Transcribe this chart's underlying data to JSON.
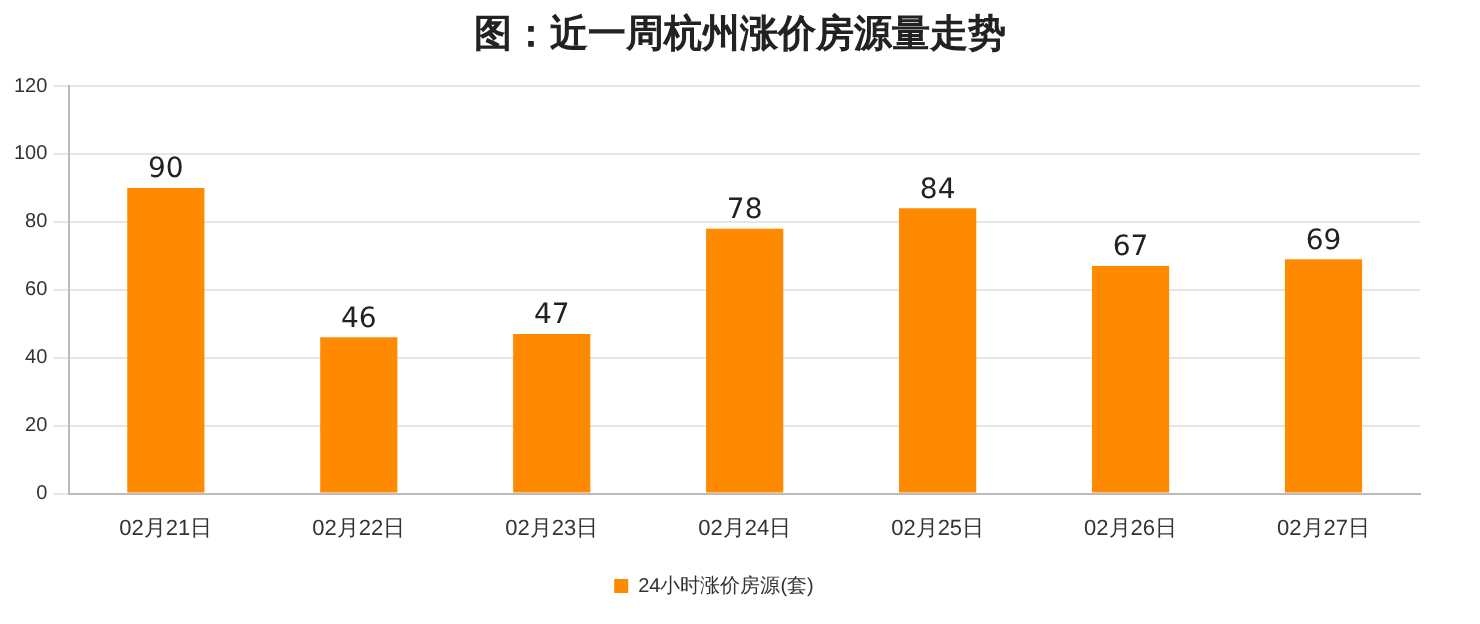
{
  "chart_data": {
    "type": "bar",
    "title": "图：近一周杭州涨价房源量走势",
    "categories": [
      "02月21日",
      "02月22日",
      "02月23日",
      "02月24日",
      "02月25日",
      "02月26日",
      "02月27日"
    ],
    "series": [
      {
        "name": "24小时涨价房源(套)",
        "color": "#ff8a00",
        "values": [
          90,
          46,
          47,
          78,
          84,
          67,
          69
        ]
      }
    ],
    "ylim": [
      0,
      120
    ],
    "yticks": [
      0,
      20,
      40,
      60,
      80,
      100,
      120
    ],
    "grid": "y",
    "legend": "bottom",
    "data_labels": true
  }
}
